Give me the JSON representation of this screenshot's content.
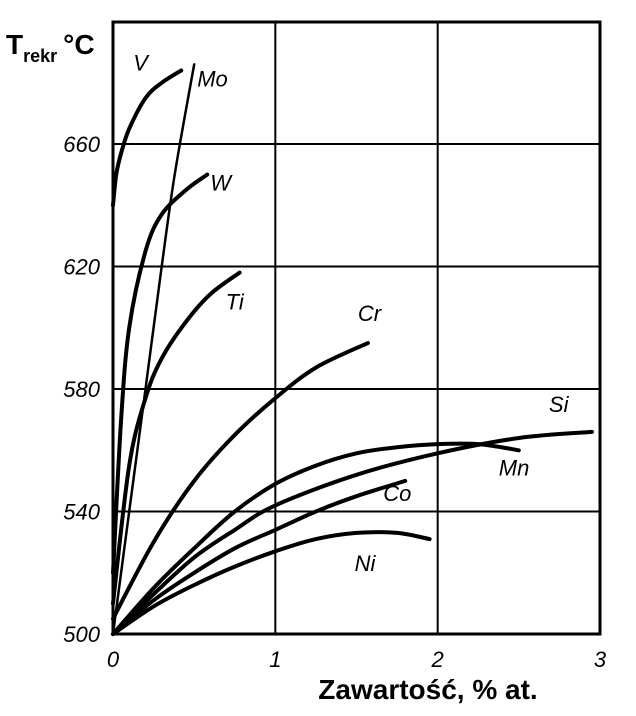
{
  "chart_data": {
    "type": "line",
    "ylabel_main": "T",
    "ylabel_sub": "rekr",
    "ylabel_unit": "°C",
    "xlabel": "Zawartość, % at.",
    "xlim": [
      0,
      3
    ],
    "ylim": [
      500,
      660
    ],
    "xticks": [
      "0",
      "1",
      "2",
      "3"
    ],
    "yticks": [
      "500",
      "540",
      "580",
      "620",
      "660"
    ],
    "grid": true,
    "series": [
      {
        "name": "V",
        "x": [
          0,
          0.02,
          0.05,
          0.1,
          0.2,
          0.3,
          0.42
        ],
        "y": [
          640,
          650,
          657,
          665,
          675,
          680,
          684
        ]
      },
      {
        "name": "Mo",
        "x": [
          0,
          0.1,
          0.2,
          0.3,
          0.38,
          0.5
        ],
        "y": [
          500,
          540,
          580,
          620,
          650,
          686
        ]
      },
      {
        "name": "W",
        "x": [
          0,
          0.05,
          0.1,
          0.2,
          0.3,
          0.45,
          0.58
        ],
        "y": [
          520,
          570,
          600,
          625,
          637,
          645,
          650
        ]
      },
      {
        "name": "Ti",
        "x": [
          0,
          0.1,
          0.2,
          0.3,
          0.45,
          0.6,
          0.78
        ],
        "y": [
          510,
          555,
          577,
          590,
          602,
          611,
          618
        ]
      },
      {
        "name": "Cr",
        "x": [
          0,
          0.25,
          0.5,
          0.75,
          1.0,
          1.25,
          1.57
        ],
        "y": [
          505,
          530,
          550,
          565,
          577,
          587,
          595
        ]
      },
      {
        "name": "Mn",
        "x": [
          0,
          0.25,
          0.5,
          0.75,
          1.0,
          1.25,
          1.5,
          1.75,
          2.0,
          2.25,
          2.5
        ],
        "y": [
          500,
          515,
          528,
          540,
          549,
          555,
          559,
          561,
          562,
          562,
          560
        ]
      },
      {
        "name": "Si",
        "x": [
          0,
          0.25,
          0.5,
          0.75,
          1.0,
          1.5,
          2.0,
          2.5,
          2.95
        ],
        "y": [
          500,
          513,
          525,
          534,
          542,
          552,
          559,
          564,
          566
        ]
      },
      {
        "name": "Co",
        "x": [
          0,
          0.25,
          0.5,
          0.75,
          1.0,
          1.25,
          1.5,
          1.8
        ],
        "y": [
          500,
          511,
          520,
          528,
          534,
          540,
          545,
          550
        ]
      },
      {
        "name": "Ni",
        "x": [
          0,
          0.25,
          0.5,
          0.75,
          1.0,
          1.25,
          1.5,
          1.75,
          1.95
        ],
        "y": [
          500,
          509,
          516,
          522,
          527,
          531,
          533,
          533,
          531
        ]
      }
    ]
  }
}
